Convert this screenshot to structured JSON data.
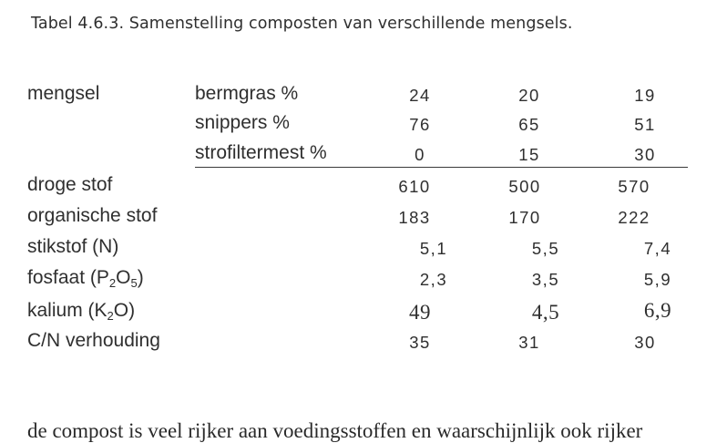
{
  "caption": "Tabel 4.6.3. Samenstelling composten van verschillende mengsels.",
  "table": {
    "mix_label": "mengsel",
    "mix_rows": [
      {
        "label": "bermgras %",
        "values": [
          "24",
          "20",
          "19"
        ]
      },
      {
        "label": "snippers %",
        "values": [
          "76",
          "65",
          "51"
        ]
      },
      {
        "label": "strofiltermest %",
        "values": [
          "0",
          "15",
          "30"
        ]
      }
    ],
    "data_rows": [
      {
        "label": "droge stof",
        "values": [
          "610",
          "500",
          "570"
        ]
      },
      {
        "label": "organische stof",
        "values": [
          "183",
          "170",
          "222"
        ]
      },
      {
        "label": "stikstof (N)",
        "values": [
          "5,1",
          "5,5",
          "7,4"
        ]
      },
      {
        "label_pre": "fosfaat (P",
        "sub1": "2",
        "label_mid": "O",
        "sub2": "5",
        "label_post": ")",
        "values": [
          "2,3",
          "3,5",
          "5,9"
        ]
      },
      {
        "label_pre": "kalium (K",
        "sub1": "2",
        "label_mid": "O)",
        "values": [
          "49",
          "4,5",
          "6,9"
        ]
      },
      {
        "label": "C/N verhouding",
        "values": [
          "35",
          "31",
          "30"
        ]
      }
    ]
  },
  "body_text": "de compost is veel rijker aan voedingsstoffen en waarschijnlijk ook rijker"
}
